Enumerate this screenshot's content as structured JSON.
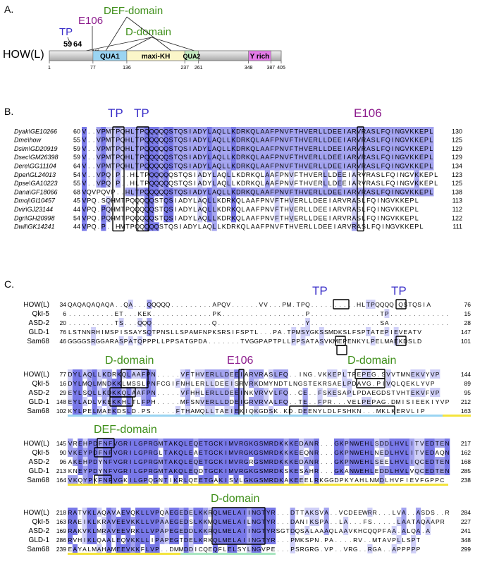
{
  "panel_labels": {
    "a": "A.",
    "b": "B.",
    "c": "C."
  },
  "colors": {
    "strong": "#7878e8",
    "medium": "#a3a3ef",
    "light": "#cfcff7",
    "tp": "#3a2fc9",
    "e106": "#8c1b8c",
    "domain": "#3f8f1a",
    "qua1": "#9ad4f2",
    "maxikh": "#fbf6c9",
    "qua2": "#c5ebc0",
    "yrich": "#e47ae8",
    "underline_blue": "#9ad4f2",
    "underline_yellow": "#f4e43c",
    "underline_green": "#a8e6c0"
  },
  "panel_a": {
    "protein_label": "HOW(L)",
    "annotations": {
      "tp": "TP",
      "e106": "E106",
      "def": "DEF-domain",
      "d": "D-domain",
      "n59": "59",
      "n64": "64",
      "n106": "106"
    },
    "domains": [
      {
        "name": "QUA1",
        "start": 77,
        "end": 136,
        "color": "qua1"
      },
      {
        "name": "maxi-KH",
        "start": 136,
        "end": 237,
        "color": "maxikh"
      },
      {
        "name": "QUA2",
        "start": 237,
        "end": 261,
        "color": "qua2"
      },
      {
        "name": "Y rich",
        "start": 348,
        "end": 387,
        "color": "yrich"
      }
    ],
    "ticks": [
      "1",
      "77",
      "136",
      "237",
      "261",
      "348",
      "387",
      "405"
    ]
  },
  "panel_b": {
    "headers": {
      "tp1": "TP",
      "tp2": "TP",
      "e106": "E106"
    },
    "rows": [
      {
        "name": "Dyak\\GE10266",
        "start": "60",
        "seq": "V..VPMTPQHLTPQQQQQSTQSIADYLAQLLKDRKQLAAFPNVFTHVERLLDEEIARVRASLFQINGVKKEPL",
        "end": "130"
      },
      {
        "name": "Dme\\how",
        "start": "55",
        "seq": "V..VPMTPQHLTPQQQQQSTQSIADYLAQLLKDRKQLAAFPNVFTHVERLLDEEIARVRASLFQINGVKKEPL",
        "end": "125"
      },
      {
        "name": "Dsim\\GD20919",
        "start": "59",
        "seq": "V..VPMTPQHLTPQQQQQSTQSIADYLAQLLKDRKQLAAFPNVFTHVERLLDEEIARVRASLFQINGVKKEPL",
        "end": "129"
      },
      {
        "name": "Dsec\\GM26398",
        "start": "59",
        "seq": "V..VPMTPQHLTPQQQQQSTQSIADYLAQLLKDRKQLAAFPNVFTHVERLLDEEIARVRASLFQINGVKKEPL",
        "end": "129"
      },
      {
        "name": "Dere\\GG11104",
        "start": "64",
        "seq": "V..VPMTPQHLTPQQQQQSTQSIADYLAQLLKDRKQLAAFPNVFTHVERLLDEEIARVRASLFQINGVKKEPL",
        "end": "134"
      },
      {
        "name": "Dper\\GL24013",
        "start": "54",
        "seq": "V..VPQ.P..HLTPQQQQQSTQSIADYLAQLLKDRKQLAAFPNVFTHVERLLDEEIARVRASLFQINGVKKEPL",
        "end": "123"
      },
      {
        "name": "Dpse\\GA10223",
        "start": "55",
        "seq": "V..VPQ.P..HLTPQQQQQSTQSIADYLAQLLKDRKQLAAFPNVFTHVERLLDEEIARVRASLFQINGVKKEPL",
        "end": "125"
      },
      {
        "name": "Dana\\GF18066",
        "start": "68",
        "seq": "VQVPQVP..HLTPQQQQQSTQSIADYLAQLLKDRKQLAAFPNVFTHVERLLDEEIARVRASLFQINGVKKEPL",
        "end": "138"
      },
      {
        "name": "Dmoj\\GI10457",
        "start": "45",
        "seq": "VPQ.SQHMTPQQQQQSTQSIADYLAQLLKDRKQLAAFPNVFTHVERLLDEEIARVRASLFQINGVKKEPL",
        "end": "113"
      },
      {
        "name": "Dvir\\GJ23144",
        "start": "44",
        "seq": "VPQ.PQHMTPQQQQQSTQSIADYLAQLLKDRKQLAAFPNVFTHVERLLDEEIARVRASLFQINGVKKEPL",
        "end": "112"
      },
      {
        "name": "Dgri\\GH20998",
        "start": "54",
        "seq": "VPQ.PQHMTPQQQQQSTQSIADYLAQLLKDRKQLAAFPNVFTHVERLLDEEIARVRASLFQINGVKKEPL",
        "end": "122"
      },
      {
        "name": "Dwil\\GK14241",
        "start": "44",
        "seq": "VPQ.P..HMTPQQQQQSTQSIADYLAQLLKDRKQLAAFPNVFTHVERLLDEEIARVRASLFQINGVKKEPL",
        "end": "111"
      }
    ]
  },
  "panel_c": {
    "labels": {
      "tp1": "TP",
      "tp2": "TP",
      "d1": "D-domain",
      "e106": "E106",
      "d2": "D-domain",
      "def": "DEF-domain",
      "d3": "D-domain"
    },
    "blocks": [
      {
        "rows": [
          {
            "name": "HOW(L)",
            "start": "34",
            "seq": "QAQAQAQAQA..QA...QQQQQ.........APQV......VV...PM.TPQ..........HLTPQQQQ.QSTQSIA",
            "end": "76"
          },
          {
            "name": "QkI-5",
            "start": "6",
            "seq": "..........ET...KEK.............PK..................P...............TP.............",
            "end": "15"
          },
          {
            "name": "ASD-2",
            "start": "20",
            "seq": "..........TS...QQQ.............Q...................Y...............SA.............",
            "end": "28"
          },
          {
            "name": "GLD-1",
            "start": "76",
            "seq": "LSTNNRHIMSPISSAYSQTPNSLLSPAMFNPKSRSIFSPTL...PA.TPMSYGKSSMDKSLFSPTATEPIEVEATV",
            "end": "147"
          },
          {
            "name": "Sam68",
            "start": "46",
            "seq": "GGGGSRGGARASPATQPPPLLPPSATGPDA.......TVGGPAPTPLLPPSATASVKMEPENKYLPELMAEKDSLD",
            "end": "101"
          }
        ]
      },
      {
        "rows": [
          {
            "name": "HOW(L)",
            "start": "77",
            "seq": "DYLAQLLKDRKQLAAFPN.....VFTHVERLLDEEIARVRASLFQ..ING.VKKEPLTPEPEG.SVVTMNEKVYVP",
            "end": "144"
          },
          {
            "name": "QkI-5",
            "start": "16",
            "seq": "DYLMQLMNDKKLMSSLPNFCGIFNHLERLLDEEISRVRKDMYNDTLNGSTEKRSAELPDAVG.PIVQLQEKLYVP",
            "end": "89"
          },
          {
            "name": "ASD-2",
            "start": "29",
            "seq": "EYLSQLLKDKKQLAAFPN.....VFHHLERLLDEEINKVRVVLFQ..CE..FSKESAPLPDAEGDSTVHTEKVFVP",
            "end": "95"
          },
          {
            "name": "GLD-1",
            "start": "148",
            "seq": "EYLADLVKEKKHLTLFPH.....MFSNVERLLDDEIGRVRVALFQ..TE..FPR...VELPEPAG.DMISIEEKIYVP",
            "end": "212"
          },
          {
            "name": "Sam68",
            "start": "102",
            "seq": "KYLPELMAEKDSLD.PS.....FTHAMQLLTAEIEKIQKGDSK.KD.DEENYLDLFSHKN...MKLKERVLIP",
            "end": "163"
          }
        ]
      },
      {
        "rows": [
          {
            "name": "HOW(L)",
            "start": "145",
            "seq": "VREHPDFNFVGRILGPRGMTAKQLEQETGCKIMVRGKGSMRDKKKEDANR...GKPNWEHLSDDLHVLITVEDTEN",
            "end": "217"
          },
          {
            "name": "QkI-5",
            "start": "90",
            "seq": "VKEYPDFNFVGRILGPRGLTAKQLEAETGCKIMVRGKGSMRDKKKEEQNR...GKPNWEHLNEDLHVLITVEDAQN",
            "end": "162"
          },
          {
            "name": "ASD-2",
            "start": "96",
            "seq": "AKEHPDYNFVGRILGPRGMTAKQLEQETGCKIMVRGRGSMRDKKKEDANR...GKPNWEHLSEELHVLIQCEDTEN",
            "end": "168"
          },
          {
            "name": "GLD-1",
            "start": "213",
            "seq": "KNEYPDYNFVGRILGPRGMTAKQLEQDTGCKIMVRGKGSMRDKSKESAHR...GKANWEHLEDDLHVLVQCEDTEN",
            "end": "285"
          },
          {
            "name": "Sam68",
            "start": "164",
            "seq": "VKQYPKFNFVGKILGPQGNTIKRLQEETGAKISVLGKGSMRDKAKEEELRKGGDPKYAHLNMDLHVFIEVFGPPC",
            "end": "238"
          }
        ]
      },
      {
        "rows": [
          {
            "name": "HOW(L)",
            "start": "218",
            "seq": "RATVKLAQAVAEVQKLLVPQAEGEDELKKRQLMELAIINGTYR...DTTAKSVA..VCDEEWRR...LVA..ASDS..R",
            "end": "284"
          },
          {
            "name": "QkI-5",
            "start": "163",
            "seq": "RAEIKLKRAVEEVKKLLVPAAEGEDSLKKMQLMELAILNGTYR...DANIKSPA..LA...FS.....LAATAQAAPR",
            "end": "227"
          },
          {
            "name": "ASD-2",
            "start": "169",
            "seq": "RAKVKLMRAVEEVRKLLVPAPEGEDDLKKRQLMELAIINGTYRSGTDQSALAAAQLAAVKHCQQPFAA.ALQA.A",
            "end": "241"
          },
          {
            "name": "GLD-1",
            "start": "286",
            "seq": "RVHIKLQAALEQVKKLLIPAPEGTDELKRKQLMELAIINGTYR...PMKSPN.PA....RV..MTAVPLLSPT",
            "end": "348"
          },
          {
            "name": "Sam68",
            "start": "239",
            "seq": "EAYALMAHAMEEVKKFLVP..DMMDDICQEQFLELSYLNGVPE...PSRGRG.VP..VRG..RGA..APPPPP",
            "end": "299"
          }
        ]
      }
    ]
  }
}
